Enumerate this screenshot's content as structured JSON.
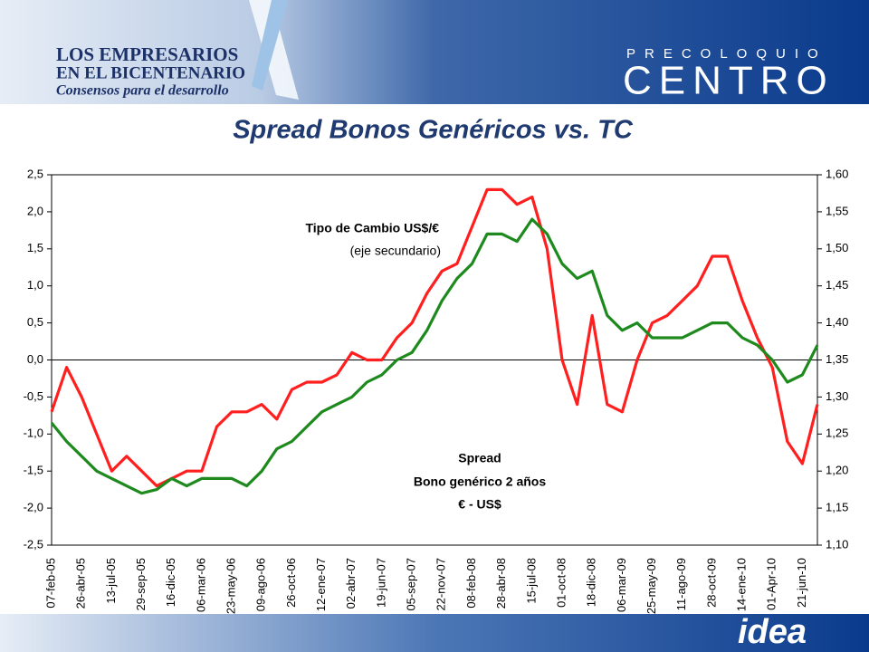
{
  "header": {
    "logo_line1": "LOS EMPRESARIOS",
    "logo_line2": "EN EL BICENTENARIO",
    "logo_tagline": "Consensos para el desarrollo",
    "event_top": "PRECOLOQUIO",
    "event_main": "CENTRO"
  },
  "footer": {
    "logo": "idea"
  },
  "chart_data": {
    "type": "line",
    "title": "Spread Bonos Genéricos vs. TC",
    "categories": [
      "07-feb-05",
      null,
      "26-abr-05",
      null,
      "13-jul-05",
      null,
      "29-sep-05",
      null,
      "16-dic-05",
      null,
      "06-mar-06",
      null,
      "23-may-06",
      null,
      "09-ago-06",
      null,
      "26-oct-06",
      null,
      "12-ene-07",
      null,
      "02-abr-07",
      null,
      "19-jun-07",
      null,
      "05-sep-07",
      null,
      "22-nov-07",
      null,
      "08-feb-08",
      null,
      "28-abr-08",
      null,
      "15-jul-08",
      null,
      "01-oct-08",
      null,
      "18-dic-08",
      null,
      "06-mar-09",
      null,
      "25-may-09",
      null,
      "11-ago-09",
      null,
      "28-oct-09",
      null,
      "14-ene-10",
      null,
      "01-Apr-10",
      null,
      "21-jun-10",
      null
    ],
    "series": [
      {
        "name": "Tipo de Cambio US$/€",
        "color": "#ff1f1f",
        "axis": "y2",
        "values": [
          1.28,
          1.34,
          1.3,
          1.25,
          1.2,
          1.22,
          1.2,
          1.18,
          1.19,
          1.2,
          1.2,
          1.26,
          1.28,
          1.28,
          1.29,
          1.27,
          1.31,
          1.32,
          1.32,
          1.33,
          1.36,
          1.35,
          1.35,
          1.38,
          1.4,
          1.44,
          1.47,
          1.48,
          1.53,
          1.58,
          1.58,
          1.56,
          1.57,
          1.5,
          1.35,
          1.29,
          1.41,
          1.29,
          1.28,
          1.35,
          1.4,
          1.41,
          1.43,
          1.45,
          1.49,
          1.49,
          1.43,
          1.38,
          1.34,
          1.24,
          1.21,
          1.29
        ]
      },
      {
        "name": "Spread",
        "color": "#1e8a1e",
        "values": [
          -0.85,
          -1.1,
          -1.3,
          -1.5,
          -1.6,
          -1.7,
          -1.8,
          -1.75,
          -1.6,
          -1.7,
          -1.6,
          -1.6,
          -1.6,
          -1.7,
          -1.5,
          -1.2,
          -1.1,
          -0.9,
          -0.7,
          -0.6,
          -0.5,
          -0.3,
          -0.2,
          0.0,
          0.1,
          0.4,
          0.8,
          1.1,
          1.3,
          1.7,
          1.7,
          1.6,
          1.9,
          1.7,
          1.3,
          1.1,
          1.2,
          0.6,
          0.4,
          0.5,
          0.3,
          0.3,
          0.3,
          0.4,
          0.5,
          0.5,
          0.3,
          0.2,
          0.0,
          -0.3,
          -0.2,
          0.2
        ]
      }
    ],
    "annotations": [
      "(eje secundario)",
      "Bono genérico 2 años",
      "€ - US$"
    ],
    "ylim": [
      -2.5,
      2.5
    ],
    "yticks": [
      {
        "value": 2.5,
        "label": "2,5"
      },
      {
        "value": 2,
        "label": "2,0"
      },
      {
        "value": 1.5,
        "label": "1,5"
      },
      {
        "value": 1,
        "label": "1,0"
      },
      {
        "value": 0.5,
        "label": "0,5"
      },
      {
        "value": 0,
        "label": "0,0"
      },
      {
        "value": -0.5,
        "label": "-0,5"
      },
      {
        "value": -1,
        "label": "-1,0"
      },
      {
        "value": -1.5,
        "label": "-1,5"
      },
      {
        "value": -2,
        "label": "-2,0"
      },
      {
        "value": -2.5,
        "label": "-2,5"
      }
    ],
    "y2lim": [
      1.1,
      1.6
    ],
    "y2ticks": [
      {
        "value": 1.6,
        "label": "1,60"
      },
      {
        "value": 1.55,
        "label": "1,55"
      },
      {
        "value": 1.5,
        "label": "1,50"
      },
      {
        "value": 1.45,
        "label": "1,45"
      },
      {
        "value": 1.4,
        "label": "1,40"
      },
      {
        "value": 1.35,
        "label": "1,35"
      },
      {
        "value": 1.3,
        "label": "1,30"
      },
      {
        "value": 1.25,
        "label": "1,25"
      },
      {
        "value": 1.2,
        "label": "1,20"
      },
      {
        "value": 1.15,
        "label": "1,15"
      },
      {
        "value": 1.1,
        "label": "1,10"
      }
    ]
  }
}
